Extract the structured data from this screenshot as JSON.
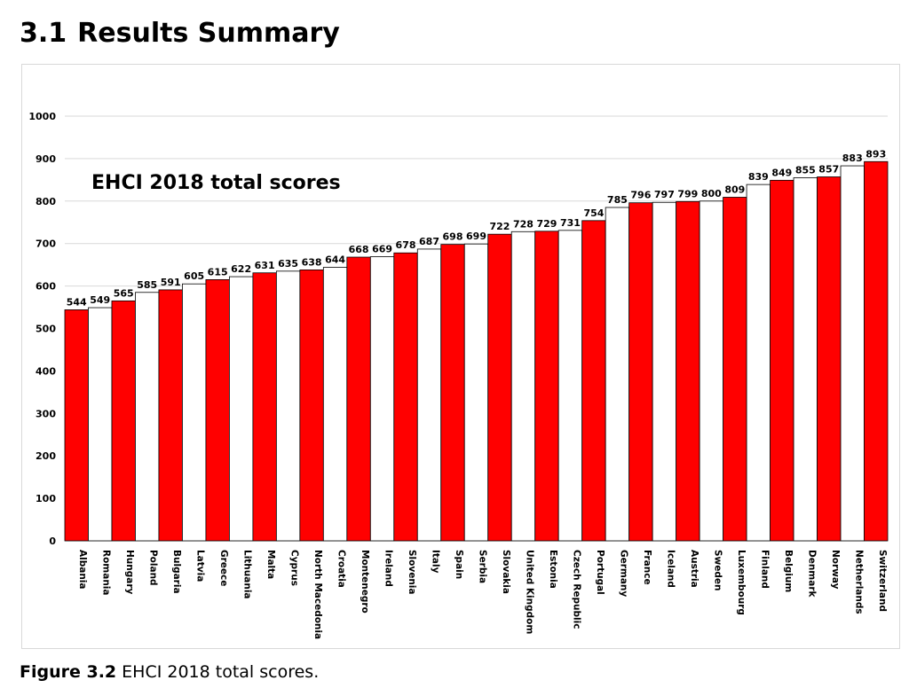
{
  "heading": {
    "number": "3.1",
    "title": "Results Summary"
  },
  "caption": {
    "label": "Figure 3.2",
    "text": "EHCI 2018 total scores."
  },
  "chart_data": {
    "type": "bar",
    "title": "EHCI 2018 total scores",
    "xlabel": "",
    "ylabel": "",
    "ylim": [
      0,
      1000
    ],
    "yticks": [
      0,
      100,
      200,
      300,
      400,
      500,
      600,
      700,
      800,
      900,
      1000
    ],
    "grid": true,
    "legend": "none",
    "bar_colors": [
      "#ff0000",
      "#ffffff"
    ],
    "bar_edge_color": "#000000",
    "categories": [
      "Albania",
      "Romania",
      "Hungary",
      "Poland",
      "Bulgaria",
      "Latvia",
      "Greece",
      "Lithuania",
      "Malta",
      "Cyprus",
      "North Macedonia",
      "Croatia",
      "Montenegro",
      "Ireland",
      "Slovenia",
      "Italy",
      "Spain",
      "Serbia",
      "Slovakia",
      "United Kingdom",
      "Estonia",
      "Czech Republic",
      "Portugal",
      "Germany",
      "France",
      "Iceland",
      "Austria",
      "Sweden",
      "Luxembourg",
      "Finland",
      "Belgium",
      "Denmark",
      "Norway",
      "Netherlands",
      "Switzerland"
    ],
    "values": [
      544,
      549,
      565,
      585,
      591,
      605,
      615,
      622,
      631,
      635,
      638,
      644,
      668,
      669,
      678,
      687,
      698,
      699,
      722,
      728,
      729,
      731,
      754,
      785,
      796,
      797,
      799,
      800,
      809,
      839,
      849,
      855,
      857,
      883,
      893
    ]
  }
}
